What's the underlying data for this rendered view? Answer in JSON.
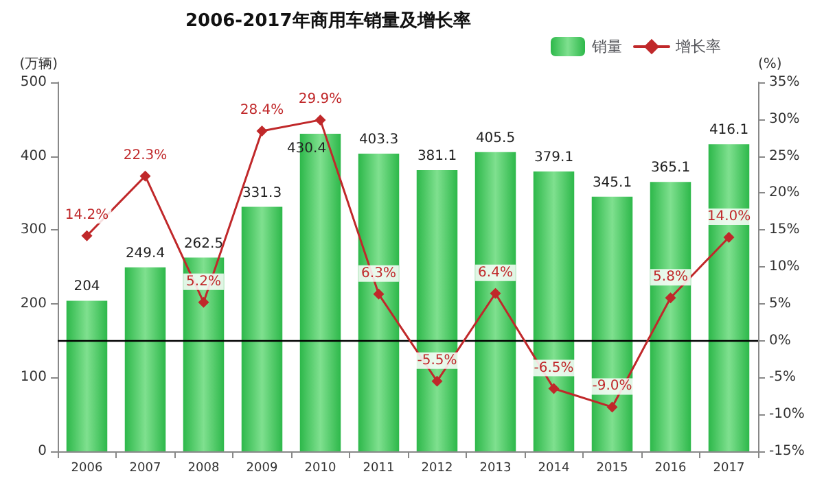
{
  "chart_data": {
    "type": "bar",
    "title": "2006-2017年商用车销量及增长率",
    "ylabel": "(万辆)",
    "y2label": "(%)",
    "categories": [
      "2006",
      "2007",
      "2008",
      "2009",
      "2010",
      "2011",
      "2012",
      "2013",
      "2014",
      "2015",
      "2016",
      "2017"
    ],
    "series": [
      {
        "name": "销量",
        "color": "#2db84a",
        "values": [
          204,
          249.4,
          262.5,
          331.3,
          430.4,
          403.3,
          381.1,
          405.5,
          379.1,
          345.1,
          365.1,
          416.1
        ],
        "value_labels": [
          "204",
          "249.4",
          "262.5",
          "331.3",
          "430.4",
          "403.3",
          "381.1",
          "405.5",
          "379.1",
          "345.1",
          "365.1",
          "416.1"
        ]
      },
      {
        "name": "增长率",
        "type": "line",
        "axis": "y2",
        "color": "#c0282a",
        "values": [
          14.2,
          22.3,
          5.2,
          28.4,
          29.9,
          6.3,
          -5.5,
          6.4,
          -6.5,
          -9.0,
          5.8,
          14.0
        ],
        "value_labels": [
          "14.2%",
          "22.3%",
          "5.2%",
          "28.4%",
          "29.9%",
          "6.3%",
          "-5.5%",
          "6.4%",
          "-6.5%",
          "-9.0%",
          "5.8%",
          "14.0%"
        ]
      }
    ],
    "ylim": [
      0,
      500
    ],
    "yticks": [
      0,
      100,
      200,
      300,
      400,
      500
    ],
    "y2lim": [
      -15,
      35
    ],
    "y2ticks": [
      {
        "value": -15,
        "label": "-15%"
      },
      {
        "value": -10,
        "label": "-10%"
      },
      {
        "value": -5,
        "label": "-5%"
      },
      {
        "value": 0,
        "label": "0%"
      },
      {
        "value": 5,
        "label": "5%"
      },
      {
        "value": 10,
        "label": "10%"
      },
      {
        "value": 15,
        "label": "15%"
      },
      {
        "value": 20,
        "label": "20%"
      },
      {
        "value": 25,
        "label": "25%"
      },
      {
        "value": 30,
        "label": "30%"
      },
      {
        "value": 35,
        "label": "35%"
      }
    ],
    "ref_lines": [
      {
        "axis": "y2",
        "value": 0,
        "color": "#000000"
      }
    ],
    "grid": false,
    "legend": "top right",
    "marker": "diamond",
    "line_style": "solid"
  }
}
